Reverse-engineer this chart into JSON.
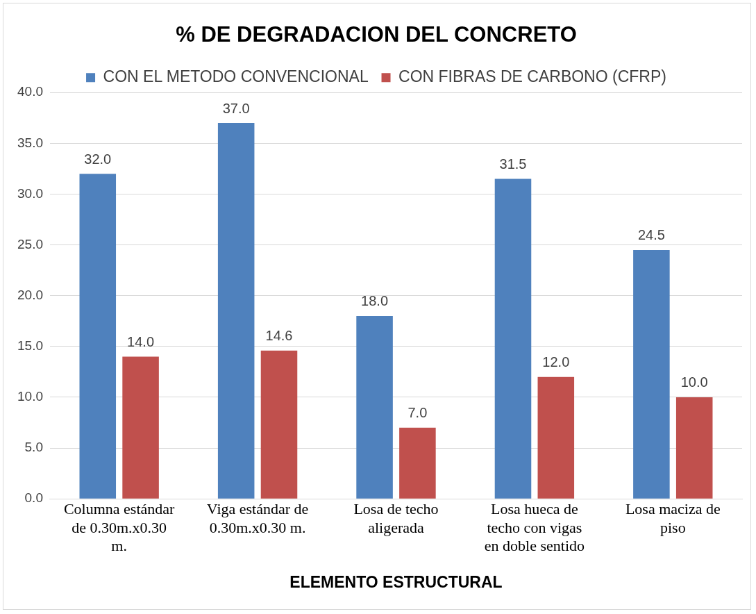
{
  "chart_data": {
    "type": "bar",
    "title": "% DE DEGRADACION DEL CONCRETO",
    "xlabel": "ELEMENTO ESTRUCTURAL",
    "categories": [
      "Columna estándar de 0.30m.x0.30 m.",
      "Viga estándar de 0.30m.x0.30 m.",
      "Losa de techo aligerada",
      "Losa hueca de techo con vigas en doble sentido",
      "Losa maciza de piso"
    ],
    "series": [
      {
        "name": "CON EL METODO CONVENCIONAL",
        "color": "#4f81bd",
        "values": [
          32.0,
          37.0,
          18.0,
          31.5,
          24.5
        ],
        "value_labels": [
          "32.0",
          "37.0",
          "18.0",
          "31.5",
          "24.5"
        ]
      },
      {
        "name": "CON FIBRAS DE CARBONO (CFRP)",
        "color": "#c0504d",
        "values": [
          14.0,
          14.6,
          7.0,
          12.0,
          10.0
        ],
        "value_labels": [
          "14.0",
          "14.6",
          "7.0",
          "12.0",
          "10.0"
        ]
      }
    ],
    "ylim": [
      0,
      40
    ],
    "yticks": [
      {
        "value": 0,
        "label": "0.0"
      },
      {
        "value": 5,
        "label": "5.0"
      },
      {
        "value": 10,
        "label": "10.0"
      },
      {
        "value": 15,
        "label": "15.0"
      },
      {
        "value": 20,
        "label": "20.0"
      },
      {
        "value": 25,
        "label": "25.0"
      },
      {
        "value": 30,
        "label": "30.0"
      },
      {
        "value": 35,
        "label": "35.0"
      },
      {
        "value": 40,
        "label": "40.0"
      }
    ],
    "grid": "y",
    "legend": "top"
  }
}
